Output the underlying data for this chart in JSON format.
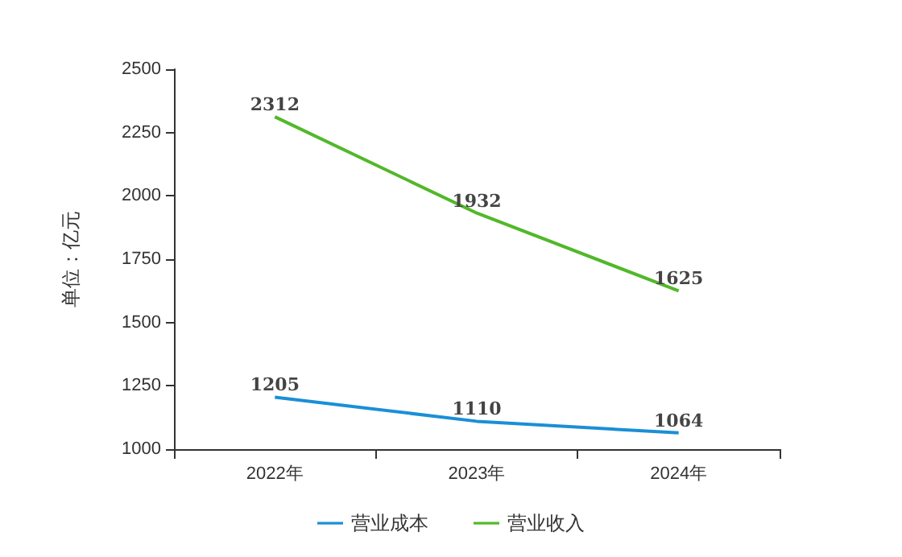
{
  "chart_data": {
    "type": "line",
    "ylabel": "单位：亿元",
    "categories": [
      "2022年",
      "2023年",
      "2024年"
    ],
    "series": [
      {
        "name": "营业成本",
        "color": "#1a8fd6",
        "values": [
          1205,
          1110,
          1064
        ]
      },
      {
        "name": "营业收入",
        "color": "#52b82a",
        "values": [
          2312,
          1932,
          1625
        ]
      }
    ],
    "ylim": [
      1000,
      2500
    ],
    "yticks": [
      1000,
      1250,
      1500,
      1750,
      2000,
      2250,
      2500
    ],
    "grid": false,
    "legend": "bottom",
    "data_labels": true,
    "marker": "none"
  }
}
